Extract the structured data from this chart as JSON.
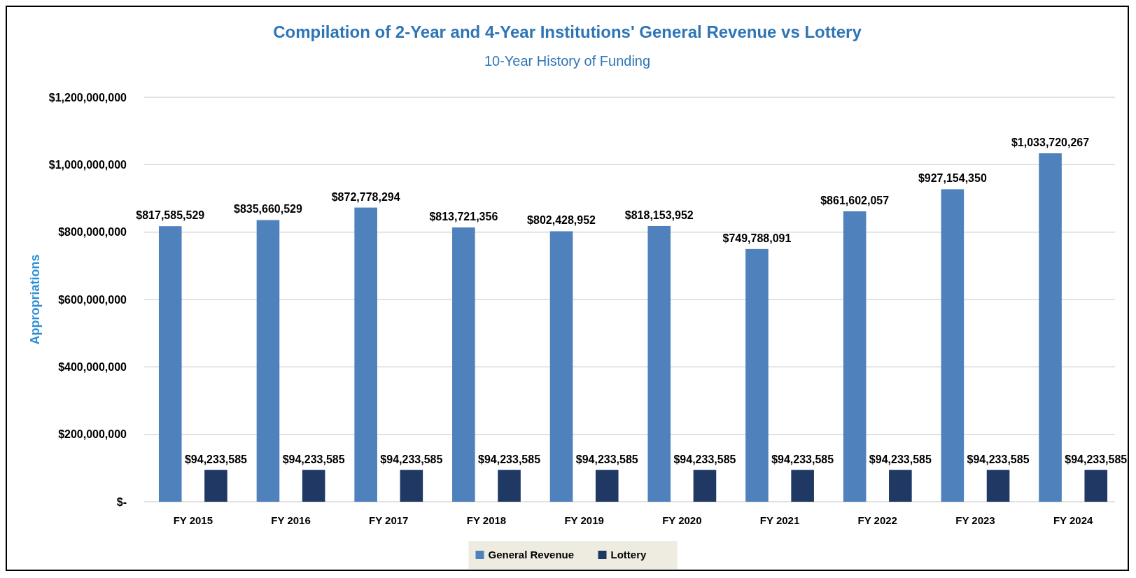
{
  "chart_data": {
    "type": "bar",
    "title": "Compilation of 2-Year and 4-Year Institutions' General Revenue vs Lottery",
    "subtitle": "10-Year History of Funding",
    "ylabel": "Appropriations",
    "categories": [
      "FY 2015",
      "FY 2016",
      "FY 2017",
      "FY 2018",
      "FY 2019",
      "FY 2020",
      "FY 2021",
      "FY 2022",
      "FY 2023",
      "FY 2024"
    ],
    "series": [
      {
        "name": "General Revenue",
        "color": "#4f81bd",
        "values": [
          817585529,
          835660529,
          872778294,
          813721356,
          802428952,
          818153952,
          749788091,
          861602057,
          927154350,
          1033720267
        ],
        "value_labels": [
          "$817,585,529",
          "$835,660,529",
          "$872,778,294",
          "$813,721,356",
          "$802,428,952",
          "$818,153,952",
          "$749,788,091",
          "$861,602,057",
          "$927,154,350",
          "$1,033,720,267"
        ]
      },
      {
        "name": "Lottery",
        "color": "#1f3864",
        "values": [
          94233585,
          94233585,
          94233585,
          94233585,
          94233585,
          94233585,
          94233585,
          94233585,
          94233585,
          94233585
        ],
        "value_labels": [
          "$94,233,585",
          "$94,233,585",
          "$94,233,585",
          "$94,233,585",
          "$94,233,585",
          "$94,233,585",
          "$94,233,585",
          "$94,233,585",
          "$94,233,585",
          "$94,233,585"
        ]
      }
    ],
    "ylim": [
      0,
      1200000000
    ],
    "yticks": [
      {
        "value": 0,
        "label": "$-"
      },
      {
        "value": 200000000,
        "label": "$200,000,000"
      },
      {
        "value": 400000000,
        "label": "$400,000,000"
      },
      {
        "value": 600000000,
        "label": "$600,000,000"
      },
      {
        "value": 800000000,
        "label": "$800,000,000"
      },
      {
        "value": 1000000000,
        "label": "$1,000,000,000"
      },
      {
        "value": 1200000000,
        "label": "$1,200,000,000"
      }
    ],
    "grid": "y",
    "legend": "bottom"
  }
}
